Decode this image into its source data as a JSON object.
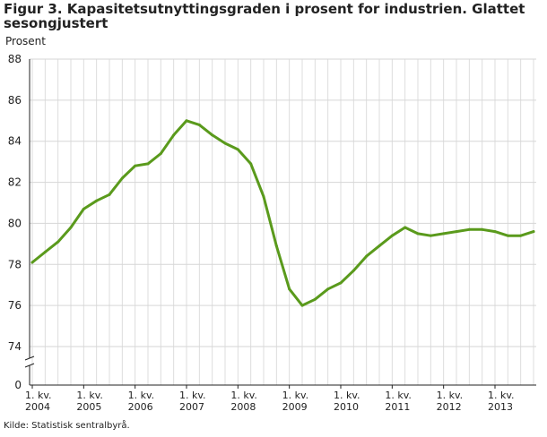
{
  "chart_data": {
    "type": "line",
    "title": "Figur 3. Kapasitetsutnyttingsgraden i prosent for industrien. Glattet sesongjustert",
    "ylabel": "Prosent",
    "ylim": [
      74,
      88
    ],
    "yticks": [
      74,
      76,
      78,
      80,
      82,
      84,
      86,
      88
    ],
    "y_zero_label": "0",
    "axis_break": true,
    "grid": true,
    "x_tick_labels": [
      {
        "q": "1. kv.",
        "year": "2004"
      },
      {
        "q": "1. kv.",
        "year": "2005"
      },
      {
        "q": "1. kv.",
        "year": "2006"
      },
      {
        "q": "1. kv.",
        "year": "2007"
      },
      {
        "q": "1. kv.",
        "year": "2008"
      },
      {
        "q": "1. kv.",
        "year": "2009"
      },
      {
        "q": "1. kv.",
        "year": "2010"
      },
      {
        "q": "1. kv.",
        "year": "2011"
      },
      {
        "q": "1. kv.",
        "year": "2012"
      },
      {
        "q": "1. kv.",
        "year": "2013"
      }
    ],
    "series": [
      {
        "color": "#5a9a1c",
        "x": [
          "2004K1",
          "2004K2",
          "2004K3",
          "2004K4",
          "2005K1",
          "2005K2",
          "2005K3",
          "2005K4",
          "2006K1",
          "2006K2",
          "2006K3",
          "2006K4",
          "2007K1",
          "2007K2",
          "2007K3",
          "2007K4",
          "2008K1",
          "2008K2",
          "2008K3",
          "2008K4",
          "2009K1",
          "2009K2",
          "2009K3",
          "2009K4",
          "2010K1",
          "2010K2",
          "2010K3",
          "2010K4",
          "2011K1",
          "2011K2",
          "2011K3",
          "2011K4",
          "2012K1",
          "2012K2",
          "2012K3",
          "2012K4",
          "2013K1",
          "2013K2",
          "2013K3",
          "2013K4"
        ],
        "values": [
          78.1,
          78.6,
          79.1,
          79.8,
          80.7,
          81.1,
          81.4,
          82.2,
          82.8,
          82.9,
          83.4,
          84.3,
          85.0,
          84.8,
          84.3,
          83.9,
          83.6,
          82.9,
          81.3,
          78.9,
          76.8,
          76.0,
          76.3,
          76.8,
          77.1,
          77.7,
          78.4,
          78.9,
          79.4,
          79.8,
          79.5,
          79.4,
          79.5,
          79.6,
          79.7,
          79.7,
          79.6,
          79.4,
          79.4,
          79.6
        ]
      }
    ]
  },
  "source": "Kilde: Statistisk sentralbyrå."
}
